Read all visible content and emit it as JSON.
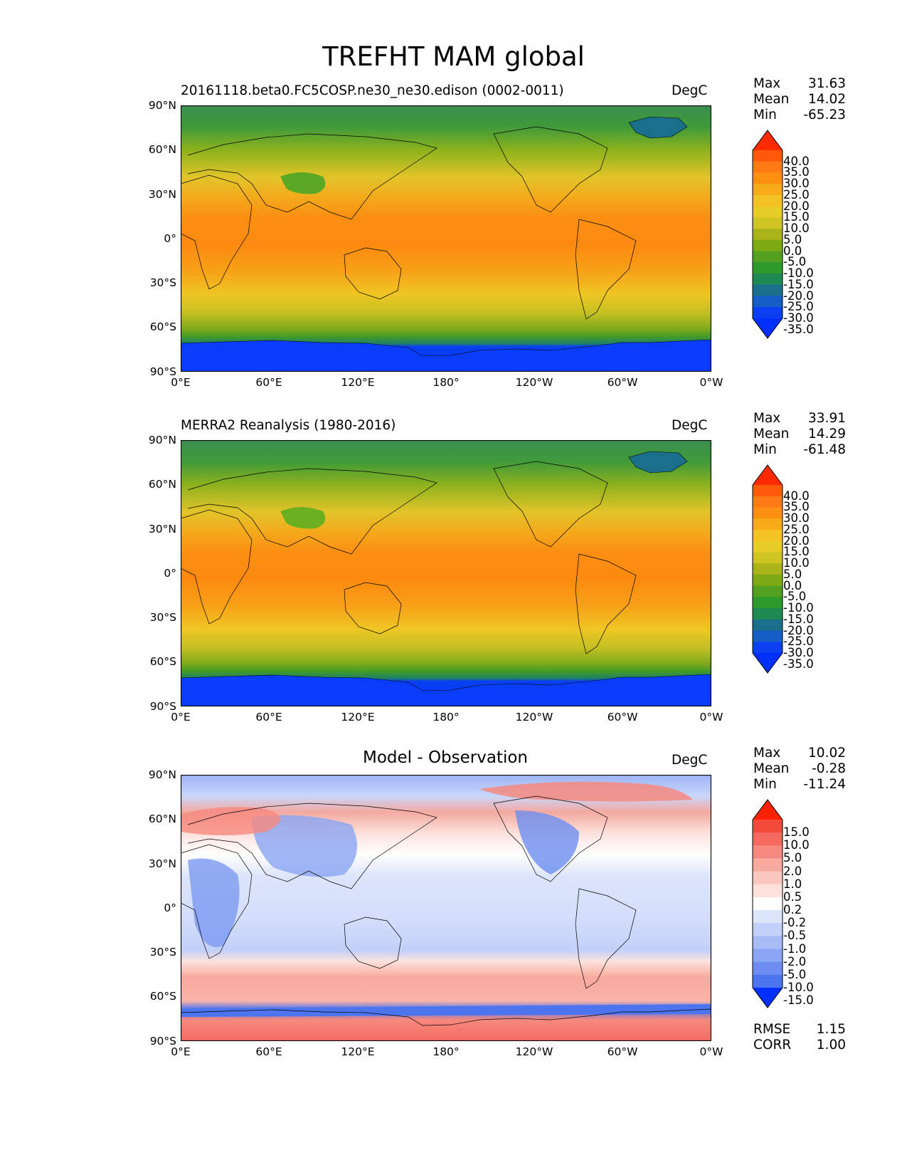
{
  "figure": {
    "title": "TREFHT MAM global",
    "lat_ticks": [
      "90°N",
      "60°N",
      "30°N",
      "0°",
      "30°S",
      "60°S",
      "90°S"
    ],
    "lon_ticks": [
      "0°E",
      "60°E",
      "120°E",
      "180°",
      "120°W",
      "60°W",
      "0°W"
    ]
  },
  "panels": [
    {
      "title": "20161118.beta0.FC5COSP.ne30_ne30.edison (0002-0011)",
      "units": "DegC",
      "stats": {
        "max_label": "Max",
        "max": "31.63",
        "mean_label": "Mean",
        "mean": "14.02",
        "min_label": "Min",
        "min": "-65.23"
      },
      "colorbar": {
        "labels": [
          "40.0",
          "35.0",
          "30.0",
          "25.0",
          "20.0",
          "15.0",
          "10.0",
          "5.0",
          "0.0",
          "-5.0",
          "-10.0",
          "-15.0",
          "-20.0",
          "-25.0",
          "-30.0",
          "-35.0"
        ],
        "colors": [
          "#ff2a00",
          "#ff5a0a",
          "#ff7a14",
          "#fb9010",
          "#f6ab18",
          "#f2c322",
          "#e8cd28",
          "#cfc522",
          "#a9b41a",
          "#7eaa14",
          "#51a020",
          "#2f9a2c",
          "#1e8a52",
          "#1a6f8a",
          "#145ec5",
          "#0a40f0",
          "#0030ff"
        ]
      }
    },
    {
      "title": "MERRA2 Reanalysis (1980-2016)",
      "units": "DegC",
      "stats": {
        "max_label": "Max",
        "max": "33.91",
        "mean_label": "Mean",
        "mean": "14.29",
        "min_label": "Min",
        "min": "-61.48"
      },
      "colorbar": {
        "labels": [
          "40.0",
          "35.0",
          "30.0",
          "25.0",
          "20.0",
          "15.0",
          "10.0",
          "5.0",
          "0.0",
          "-5.0",
          "-10.0",
          "-15.0",
          "-20.0",
          "-25.0",
          "-30.0",
          "-35.0"
        ],
        "colors": [
          "#ff2a00",
          "#ff5a0a",
          "#ff7a14",
          "#fb9010",
          "#f6ab18",
          "#f2c322",
          "#e8cd28",
          "#cfc522",
          "#a9b41a",
          "#7eaa14",
          "#51a020",
          "#2f9a2c",
          "#1e8a52",
          "#1a6f8a",
          "#145ec5",
          "#0a40f0",
          "#0030ff"
        ]
      }
    },
    {
      "title": "Model - Observation",
      "units": "DegC",
      "stats": {
        "max_label": "Max",
        "max": "10.02",
        "mean_label": "Mean",
        "mean": "-0.28",
        "min_label": "Min",
        "min": "-11.24"
      },
      "colorbar": {
        "labels": [
          "15.0",
          "10.0",
          "5.0",
          "2.0",
          "1.0",
          "0.5",
          "0.2",
          "-0.2",
          "-0.5",
          "-1.0",
          "-2.0",
          "-5.0",
          "-10.0",
          "-15.0"
        ],
        "colors": [
          "#ff2200",
          "#f34a3c",
          "#f46a60",
          "#f6897f",
          "#f8aa9f",
          "#fbc8c0",
          "#fde2dc",
          "#ffffff",
          "#dde5fb",
          "#c2d0fa",
          "#a7bcf7",
          "#8aa5f3",
          "#6d8ef0",
          "#4d74ef",
          "#0030ff"
        ]
      },
      "extra": {
        "rmse_label": "RMSE",
        "rmse": "1.15",
        "corr_label": "CORR",
        "corr": "1.00"
      }
    }
  ]
}
